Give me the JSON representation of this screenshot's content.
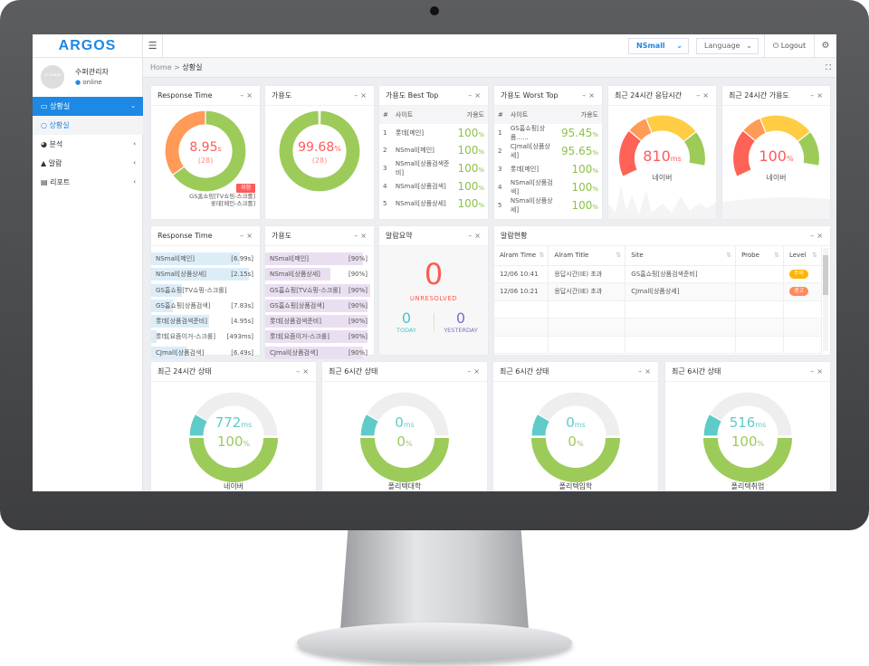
{
  "app": {
    "logo": "ARGOS",
    "menu_icon": "hamburger-icon"
  },
  "topbar": {
    "site_select": "NSmall",
    "language_select": "Language",
    "logout": "Logout",
    "logout_icon": "power-icon",
    "settings_icon": "gears-icon"
  },
  "user": {
    "avatar_text": "no image",
    "name": "수퍼관리자",
    "status": "online"
  },
  "sidebar": {
    "items": [
      {
        "label": "상황실",
        "icon": "monitor-icon",
        "active": true
      },
      {
        "label": "상황실",
        "icon": "circle-icon",
        "sub": true
      },
      {
        "label": "분석",
        "icon": "chart-pie-icon"
      },
      {
        "label": "알람",
        "icon": "warning-icon"
      },
      {
        "label": "리포트",
        "icon": "report-icon"
      }
    ]
  },
  "breadcrumb": {
    "home": "Home",
    "separator": ">",
    "current": "상황실"
  },
  "colors": {
    "accent": "#1e88e5",
    "green": "#9ccb5a",
    "orange": "#ff9a57",
    "red": "#ff6257",
    "yellow": "#ffcc44",
    "teal": "#5ecbc8",
    "purple": "#7e6bc9"
  },
  "rt_donut": {
    "title": "Response Time",
    "value": "8.95",
    "unit": "s",
    "count": "(28)",
    "normal_fraction": 0.65,
    "alert_badge": "위험",
    "alert_sites": [
      "GS홈쇼핑[TV쇼핑-스크롤]",
      "롯데[메인-스크롤]"
    ]
  },
  "avail_donut": {
    "title": "가용도",
    "value": "99.68",
    "unit": "%",
    "count": "(28)",
    "fraction": 0.9968
  },
  "best_top": {
    "title": "가용도 Best Top",
    "headers": [
      "#",
      "사이트",
      "가용도"
    ],
    "rows": [
      {
        "rank": "1",
        "site": "롯데[메인]",
        "value": "100"
      },
      {
        "rank": "2",
        "site": "NSmall[메인]",
        "value": "100"
      },
      {
        "rank": "3",
        "site": "NSmall[상품검색준비]",
        "value": "100"
      },
      {
        "rank": "4",
        "site": "NSmall[상품검색]",
        "value": "100"
      },
      {
        "rank": "5",
        "site": "NSmall[상품상세]",
        "value": "100"
      }
    ]
  },
  "worst_top": {
    "title": "가용도 Worst Top",
    "headers": [
      "#",
      "사이트",
      "가용도"
    ],
    "rows": [
      {
        "rank": "1",
        "site": "GS홈쇼핑[상품......",
        "value": "95.45"
      },
      {
        "rank": "2",
        "site": "CJmall[상품상세]",
        "value": "95.65"
      },
      {
        "rank": "3",
        "site": "롯데[메인]",
        "value": "100"
      },
      {
        "rank": "4",
        "site": "NSmall[상품검색]",
        "value": "100"
      },
      {
        "rank": "5",
        "site": "NSmall[상품상세]",
        "value": "100"
      }
    ]
  },
  "gauge_rt": {
    "title": "최근 24시간 응답시간",
    "value": "810",
    "unit": "ms",
    "site": "네이버"
  },
  "gauge_av": {
    "title": "최근 24시간 가용도",
    "value": "100",
    "unit": "%",
    "site": "네이버"
  },
  "rt_list": {
    "title": "Response Time",
    "rows": [
      {
        "site": "NSmall[메인]",
        "value": "[6.99s]",
        "fill": 0.82
      },
      {
        "site": "NSmall[상품상세]",
        "value": "[2.15s]",
        "fill": 0.9
      },
      {
        "site": "GS홈쇼핑[TV쇼핑-스크롤]",
        "value": "",
        "fill": 0.28
      },
      {
        "site": "GS홈쇼핑[상품검색]",
        "value": "[7.83s]",
        "fill": 0.2
      },
      {
        "site": "롯데[상품검색준비]",
        "value": "[4.95s]",
        "fill": 0.53
      },
      {
        "site": "롯데[요즘이거-스크롤]",
        "value": "[493ms]",
        "fill": 0.05
      },
      {
        "site": "CJmall[상품검색]",
        "value": "[6.49s]",
        "fill": 0.33
      }
    ]
  },
  "av_list": {
    "title": "가용도",
    "rows": [
      {
        "site": "NSmall[메인]",
        "value": "[90%]",
        "fill": 0.9
      },
      {
        "site": "NSmall[상품상세]",
        "value": "[90%]",
        "fill": 0.6
      },
      {
        "site": "GS홈쇼핑[TV쇼핑-스크롤]",
        "value": "[90%]",
        "fill": 0.97
      },
      {
        "site": "GS홈쇼핑[상품검색]",
        "value": "[90%]",
        "fill": 0.94
      },
      {
        "site": "롯데[상품검색준비]",
        "value": "[90%]",
        "fill": 0.94
      },
      {
        "site": "롯데[요즘이거-스크롤]",
        "value": "[90%]",
        "fill": 0.94
      },
      {
        "site": "CJmall[상품검색]",
        "value": "[90%]",
        "fill": 0.9
      }
    ]
  },
  "alarm_summary": {
    "title": "알람요약",
    "unresolved": "0",
    "unresolved_label": "UNRESOLVED",
    "today": "0",
    "today_label": "TODAY",
    "yesterday": "0",
    "yesterday_label": "YESTERDAY"
  },
  "alarm_status": {
    "title": "알람현황",
    "headers": [
      "Alram Time",
      "Alram Title",
      "Site",
      "Probe",
      "Level"
    ],
    "rows": [
      {
        "time": "12/06 10:41",
        "title": "응답시간(IE) 초과",
        "site": "GS홈쇼핑[상품검색준비]",
        "probe": "",
        "level": "주의",
        "level_color": "#ffb300"
      },
      {
        "time": "12/06 10:21",
        "title": "응답시간(IE) 초과",
        "site": "CJmall[상품상세]",
        "probe": "",
        "level": "경고",
        "level_color": "#ff8a5c"
      }
    ]
  },
  "status_cards": [
    {
      "title": "최근 24시간 상태",
      "rt": "772",
      "rt_unit": "ms",
      "av": "100",
      "av_unit": "%",
      "site": "네이버"
    },
    {
      "title": "최근 6시간 상태",
      "rt": "0",
      "rt_unit": "ms",
      "av": "0",
      "av_unit": "%",
      "site": "폴리텍대학"
    },
    {
      "title": "최근 6시간 상태",
      "rt": "0",
      "rt_unit": "ms",
      "av": "0",
      "av_unit": "%",
      "site": "폴리텍입학"
    },
    {
      "title": "최근 6시간 상태",
      "rt": "516",
      "rt_unit": "ms",
      "av": "100",
      "av_unit": "%",
      "site": "폴리텍취업"
    }
  ]
}
